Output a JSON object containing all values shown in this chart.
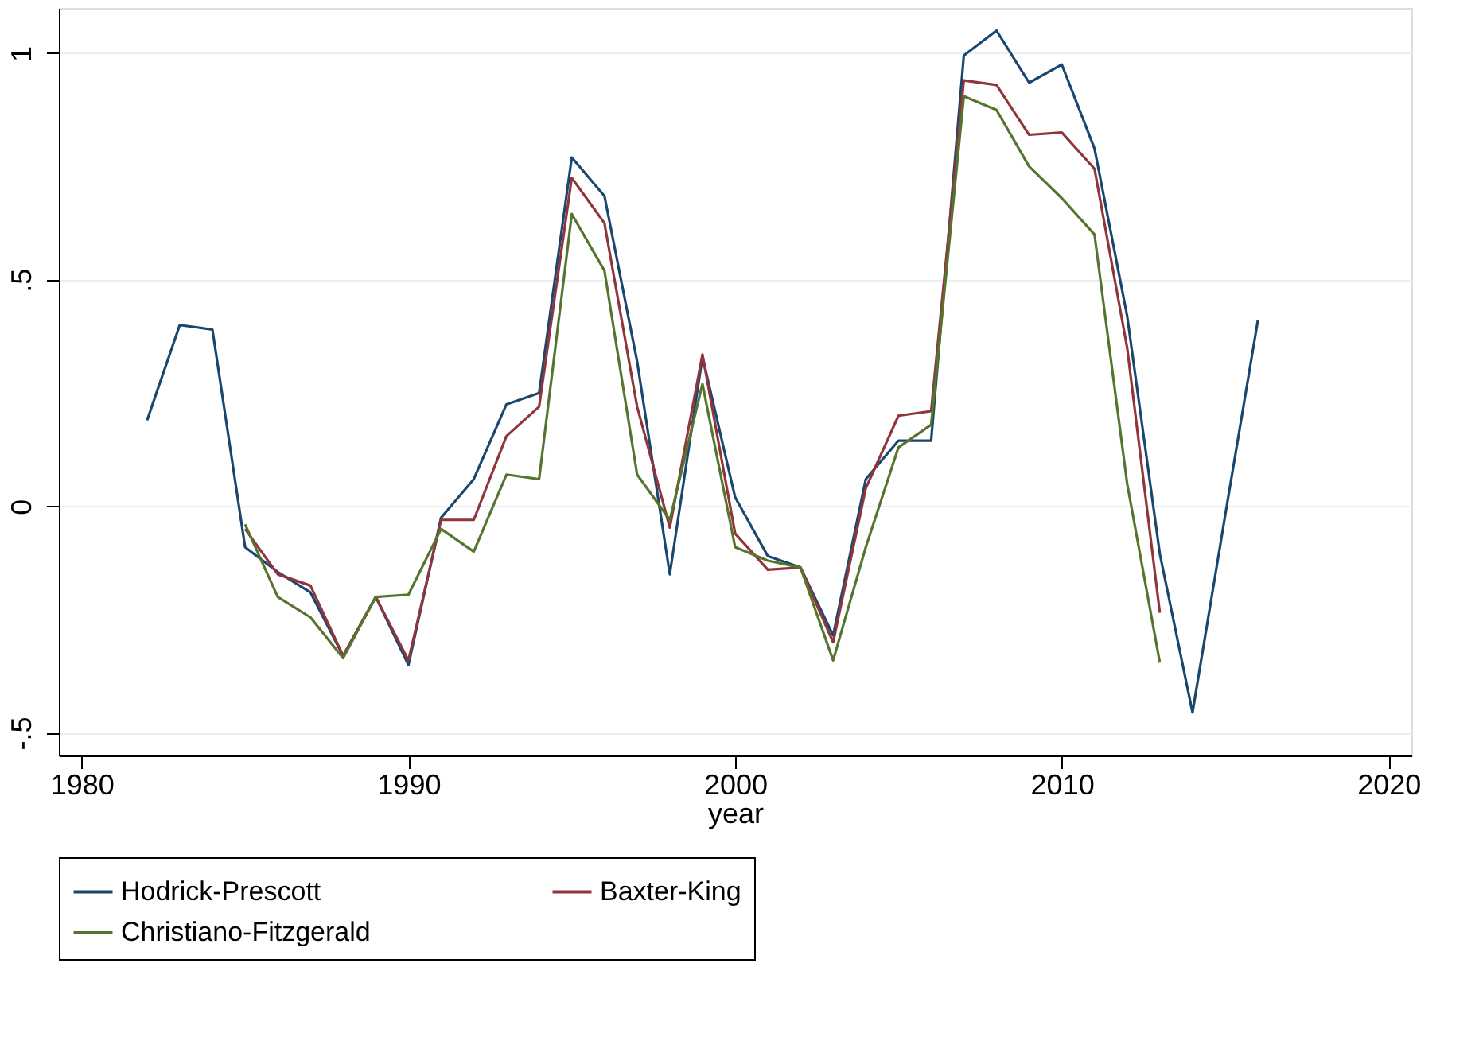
{
  "chart_data": {
    "type": "line",
    "xlabel": "year",
    "x": [
      1982,
      1983,
      1984,
      1985,
      1986,
      1987,
      1988,
      1989,
      1990,
      1991,
      1992,
      1993,
      1994,
      1995,
      1996,
      1997,
      1998,
      1999,
      2000,
      2001,
      2002,
      2003,
      2004,
      2005,
      2006,
      2007,
      2008,
      2009,
      2010,
      2011,
      2012,
      2013,
      2014,
      2015,
      2016
    ],
    "series": [
      {
        "name": "Hodrick-Prescott",
        "color": "#1a476f",
        "values": [
          0.19,
          0.4,
          0.39,
          -0.09,
          -0.145,
          -0.19,
          -0.33,
          -0.2,
          -0.35,
          -0.025,
          0.06,
          0.225,
          0.25,
          0.77,
          0.685,
          0.32,
          -0.15,
          0.33,
          0.02,
          -0.11,
          -0.135,
          -0.285,
          0.06,
          0.145,
          0.145,
          0.995,
          1.05,
          0.935,
          0.975,
          0.79,
          0.42,
          -0.105,
          -0.455,
          -0.02,
          0.41
        ]
      },
      {
        "name": "Baxter-King",
        "color": "#90353b",
        "values": [
          null,
          null,
          null,
          -0.05,
          -0.15,
          -0.175,
          -0.33,
          -0.2,
          -0.34,
          -0.03,
          -0.03,
          0.155,
          0.22,
          0.725,
          0.625,
          0.22,
          -0.047,
          0.335,
          -0.06,
          -0.14,
          -0.135,
          -0.3,
          0.04,
          0.2,
          0.21,
          0.94,
          0.93,
          0.82,
          0.825,
          0.745,
          0.35,
          -0.235,
          null,
          null,
          null
        ]
      },
      {
        "name": "Christiano-Fitzgerald",
        "color": "#55752f",
        "values": [
          null,
          null,
          null,
          -0.04,
          -0.2,
          -0.245,
          -0.335,
          -0.2,
          -0.195,
          -0.05,
          -0.1,
          0.07,
          0.06,
          0.645,
          0.52,
          0.07,
          -0.03,
          0.27,
          -0.09,
          -0.12,
          -0.135,
          -0.34,
          -0.09,
          0.13,
          0.18,
          0.905,
          0.875,
          0.75,
          0.68,
          0.6,
          0.05,
          -0.345,
          null,
          null,
          null
        ]
      }
    ],
    "xlim": [
      1979.3,
      2020.7
    ],
    "xticks": [
      1980,
      1990,
      2000,
      2010,
      2020
    ],
    "ylim": [
      -0.55,
      1.1
    ],
    "yticks": [
      {
        "value": -0.5,
        "label": "-.5"
      },
      0,
      {
        "value": 0.5,
        "label": ".5"
      },
      1
    ],
    "grid": "y",
    "legend": "bottom",
    "line_style": "solid",
    "marker": "none"
  }
}
